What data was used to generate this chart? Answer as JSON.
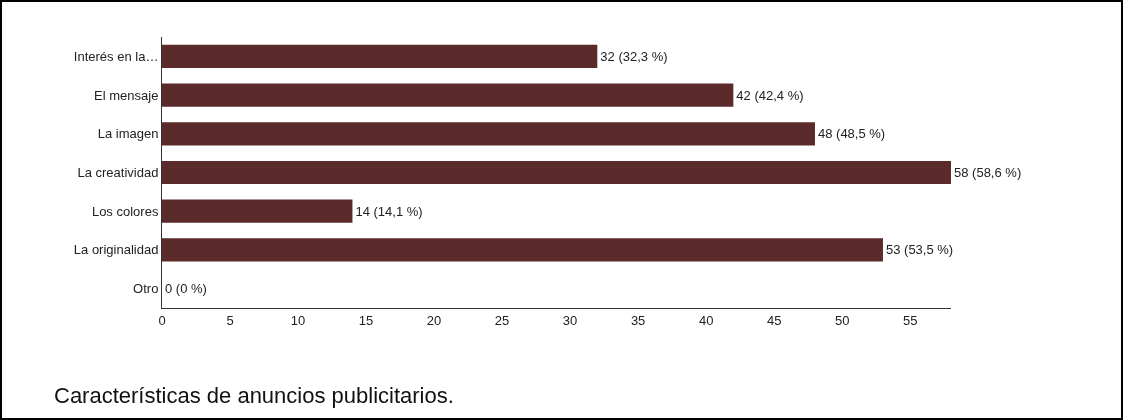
{
  "chart_data": {
    "type": "bar",
    "orientation": "horizontal",
    "categories": [
      "Interés en la…",
      "El mensaje",
      "La imagen",
      "La creatividad",
      "Los colores",
      "La originalidad",
      "Otro"
    ],
    "values": [
      32,
      42,
      48,
      58,
      14,
      53,
      0
    ],
    "value_labels": [
      "32 (32,3 %)",
      "42 (42,4 %)",
      "48 (48,5 %)",
      "58 (58,6 %)",
      "14 (14,1 %)",
      "53 (53,5 %)",
      "0 (0 %)"
    ],
    "color": "#5b2a2a",
    "xlim": [
      0,
      58
    ],
    "xticks": [
      0,
      5,
      10,
      15,
      20,
      25,
      30,
      35,
      40,
      45,
      50,
      55
    ],
    "grid": false,
    "legend": false,
    "annotations": [
      "Características de anuncios publicitarios."
    ]
  }
}
